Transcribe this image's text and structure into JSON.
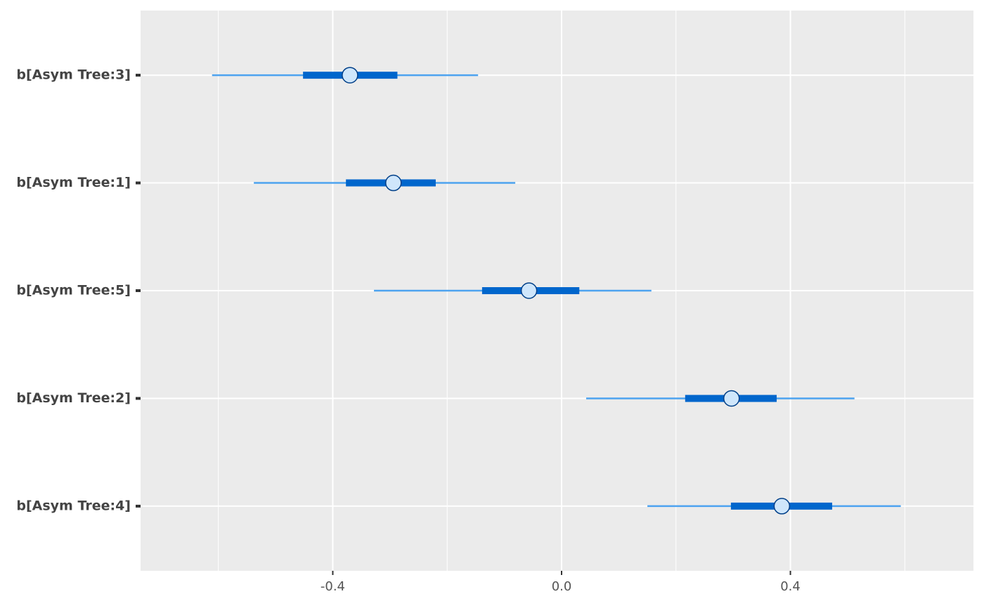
{
  "chart_data": {
    "type": "interval",
    "categories": [
      "b[Asym Tree:3]",
      "b[Asym Tree:1]",
      "b[Asym Tree:5]",
      "b[Asym Tree:2]",
      "b[Asym Tree:4]"
    ],
    "point": [
      -0.37,
      -0.294,
      -0.057,
      0.297,
      0.385
    ],
    "inner_low": [
      -0.452,
      -0.377,
      -0.139,
      0.216,
      0.296
    ],
    "inner_high": [
      -0.287,
      -0.22,
      0.031,
      0.376,
      0.473
    ],
    "outer_low": [
      -0.611,
      -0.538,
      -0.328,
      0.043,
      0.15
    ],
    "outer_high": [
      -0.146,
      -0.081,
      0.157,
      0.512,
      0.593
    ],
    "xlim": [
      -0.736,
      0.72
    ],
    "xticks": [
      -0.4,
      {
        "value": 0,
        "label": "0.0"
      },
      0.4
    ],
    "xminor": [
      -0.6,
      -0.2,
      0.2,
      0.6
    ],
    "grid": true,
    "colors": {
      "outer": "#4da3f0",
      "inner": "#0066cc",
      "point_fill": "#cfe6fb",
      "point_stroke": "#003f88"
    }
  }
}
